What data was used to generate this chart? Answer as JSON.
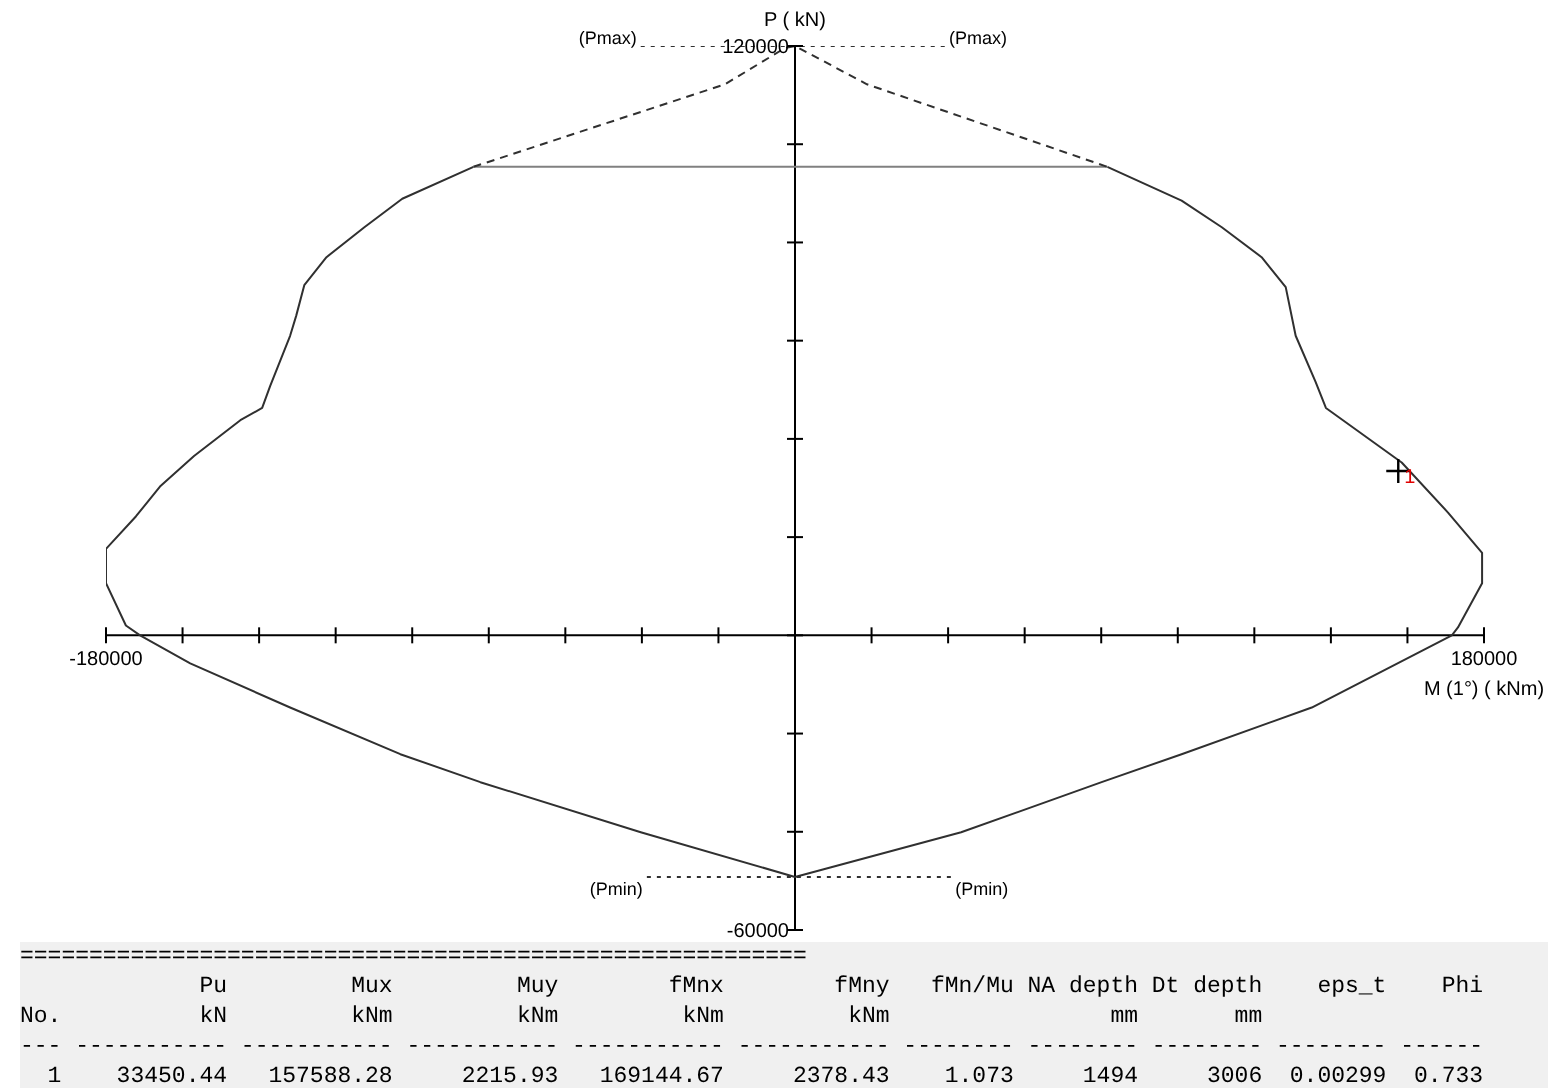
{
  "chart_data": {
    "type": "line",
    "xlabel": "M (1°) ( kNm)",
    "ylabel": "P ( kN)",
    "xlim": [
      -180000,
      180000
    ],
    "xticks": [
      -180000,
      {
        "value": -160000,
        "label": null
      },
      {
        "value": -140000,
        "label": null
      },
      {
        "value": -120000,
        "label": null
      },
      {
        "value": -100000,
        "label": null
      },
      {
        "value": -80000,
        "label": null
      },
      {
        "value": -60000,
        "label": null
      },
      {
        "value": -40000,
        "label": null
      },
      {
        "value": -20000,
        "label": null
      },
      {
        "value": 0,
        "label": null
      },
      {
        "value": 20000,
        "label": null
      },
      {
        "value": 40000,
        "label": null
      },
      {
        "value": 60000,
        "label": null
      },
      {
        "value": 80000,
        "label": null
      },
      {
        "value": 100000,
        "label": null
      },
      {
        "value": 120000,
        "label": null
      },
      {
        "value": 140000,
        "label": null
      },
      {
        "value": 160000,
        "label": null
      },
      180000
    ],
    "ylim": [
      -60000,
      120000
    ],
    "yticks": [
      -60000,
      {
        "value": -40000,
        "label": null
      },
      {
        "value": -20000,
        "label": null
      },
      {
        "value": 0,
        "label": null
      },
      {
        "value": 20000,
        "label": null
      },
      {
        "value": 40000,
        "label": null
      },
      {
        "value": 60000,
        "label": null
      },
      {
        "value": 80000,
        "label": null
      },
      {
        "value": 100000,
        "label": null
      },
      120000
    ],
    "grid": false,
    "marker": "none",
    "series": [
      {
        "color": "#303030",
        "line_style": "solid",
        "x": [
          -84000,
          -102600,
          -112500,
          -122400,
          -128200,
          -130300,
          -131900,
          -137100,
          -139200,
          -144900,
          -157000,
          -165900,
          -172200,
          -180000,
          -180000,
          -174800,
          -171100,
          -158000,
          -131900,
          -103100,
          -82200,
          -40300,
          0,
          43400,
          80100,
          101000,
          135000,
          171600,
          173200,
          179500,
          179500,
          170600,
          158500,
          138700,
          136000,
          130800,
          128200,
          121900,
          111500,
          101000,
          81600
        ],
        "values": [
          95400,
          88900,
          83100,
          77000,
          71300,
          65100,
          61000,
          50800,
          46300,
          43800,
          36500,
          30300,
          24200,
          17600,
          10600,
          2000,
          0,
          -5700,
          -14700,
          -24200,
          -29900,
          -40100,
          -49200,
          -40100,
          -29900,
          -24200,
          -14700,
          0,
          1600,
          10600,
          16800,
          25000,
          35200,
          46300,
          51600,
          61000,
          70900,
          77000,
          83100,
          88500,
          95400
        ]
      },
      {
        "color": "#808080",
        "line_style": "solid",
        "x": [
          -84000,
          81600
        ],
        "values": [
          95400,
          95400
        ]
      },
      {
        "color": "#303030",
        "line_style": "dashed",
        "x": [
          -84000,
          -18300,
          -2600,
          0,
          18800,
          81600
        ],
        "values": [
          95400,
          112200,
          119600,
          120000,
          112200,
          95400
        ]
      },
      {
        "color": "#303030",
        "line_style": "dotted",
        "x": [
          -40300,
          39200
        ],
        "values": [
          120000,
          120000
        ]
      },
      {
        "color": "#303030",
        "line_style": "dotted",
        "x": [
          -38700,
          40800
        ],
        "values": [
          -49200,
          -49200
        ]
      },
      {
        "type": "scatter",
        "name": "1",
        "color": "#000000",
        "marker": "cross",
        "x": [
          157600
        ],
        "values": [
          33450
        ]
      }
    ],
    "annotations": [
      {
        "text": "(Pmax)",
        "x": -40300,
        "y": 120000
      },
      {
        "text": "(Pmax)",
        "x": 39200,
        "y": 120000
      },
      {
        "text": "(Pmin)",
        "x": -38700,
        "y": -49200
      },
      {
        "text": "(Pmin)",
        "x": 40800,
        "y": -49200
      },
      "=========================================================",
      "             Pu         Mux         Muy        fMnx        fMny   fMn/Mu NA depth Dt depth    eps_t    Phi",
      "No.          kN         kNm         kNm         kNm         kNm                mm       mm",
      "--- ----------- ----------- ----------- ----------- ----------- -------- -------- -------- -------- ------",
      "  1    33450.44   157588.28     2215.93   169144.67     2378.43    1.073     1494     3006  0.00299  0.733"
    ]
  }
}
